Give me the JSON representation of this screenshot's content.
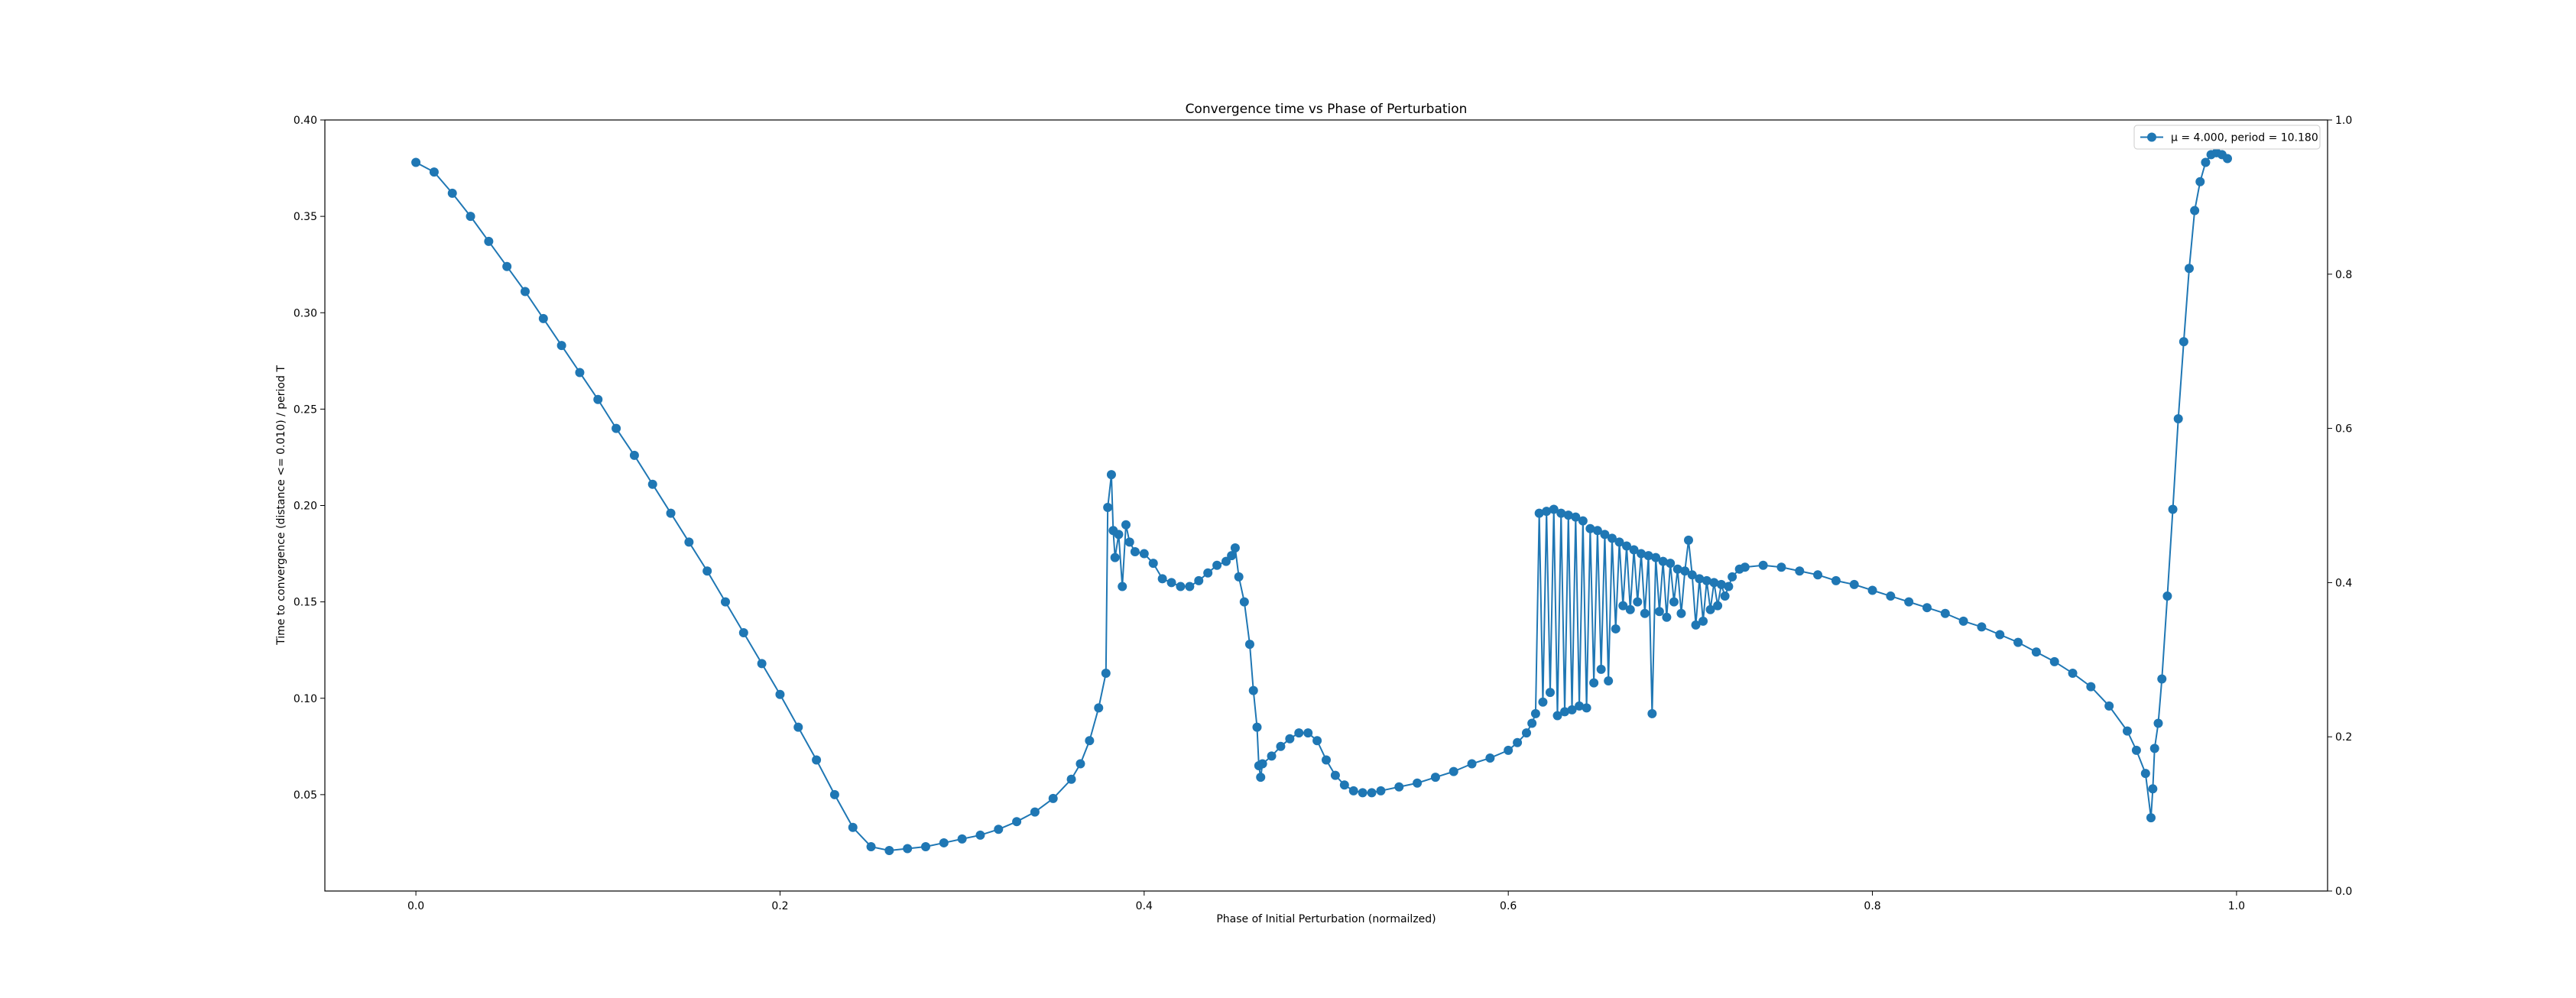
{
  "chart_data": {
    "type": "line",
    "title": "Convergence time vs Phase of Perturbation",
    "xlabel": "Phase of Initial Perturbation (normailzed)",
    "ylabel": "Time to convergence (distance <= 0.010) / period T",
    "xlim": [
      -0.05,
      1.05
    ],
    "ylim": [
      0.0,
      0.4
    ],
    "xticks": [
      "0.0",
      "0.2",
      "0.4",
      "0.6",
      "0.8",
      "1.0"
    ],
    "yticks": [
      "0.05",
      "0.10",
      "0.15",
      "0.20",
      "0.25",
      "0.30",
      "0.35",
      "0.40"
    ],
    "secondary_y": {
      "ylim": [
        0.0,
        1.0
      ],
      "ticks": [
        "0.0",
        "0.2",
        "0.4",
        "0.6",
        "0.8",
        "1.0"
      ]
    },
    "grid": false,
    "legend_position": "top-right",
    "colors": {
      "series": "#1f77b4",
      "axes": "#000000"
    },
    "series": [
      {
        "name": "μ = 4.000, period = 10.180",
        "legend_label": "μ = 4.000, period = 10.180",
        "marker": "circle",
        "color": "#1f77b4",
        "points": [
          [
            0.0,
            0.378
          ],
          [
            0.01,
            0.373
          ],
          [
            0.02,
            0.362
          ],
          [
            0.03,
            0.35
          ],
          [
            0.04,
            0.337
          ],
          [
            0.05,
            0.324
          ],
          [
            0.06,
            0.311
          ],
          [
            0.07,
            0.297
          ],
          [
            0.08,
            0.283
          ],
          [
            0.09,
            0.269
          ],
          [
            0.1,
            0.255
          ],
          [
            0.11,
            0.24
          ],
          [
            0.12,
            0.226
          ],
          [
            0.13,
            0.211
          ],
          [
            0.14,
            0.196
          ],
          [
            0.15,
            0.181
          ],
          [
            0.16,
            0.166
          ],
          [
            0.17,
            0.15
          ],
          [
            0.18,
            0.134
          ],
          [
            0.19,
            0.118
          ],
          [
            0.2,
            0.102
          ],
          [
            0.21,
            0.085
          ],
          [
            0.22,
            0.068
          ],
          [
            0.23,
            0.05
          ],
          [
            0.24,
            0.033
          ],
          [
            0.25,
            0.023
          ],
          [
            0.26,
            0.021
          ],
          [
            0.27,
            0.022
          ],
          [
            0.28,
            0.023
          ],
          [
            0.29,
            0.025
          ],
          [
            0.3,
            0.027
          ],
          [
            0.31,
            0.029
          ],
          [
            0.32,
            0.032
          ],
          [
            0.33,
            0.036
          ],
          [
            0.34,
            0.041
          ],
          [
            0.35,
            0.048
          ],
          [
            0.36,
            0.058
          ],
          [
            0.365,
            0.066
          ],
          [
            0.37,
            0.078
          ],
          [
            0.375,
            0.095
          ],
          [
            0.379,
            0.113
          ],
          [
            0.38,
            0.199
          ],
          [
            0.382,
            0.216
          ],
          [
            0.383,
            0.187
          ],
          [
            0.384,
            0.173
          ],
          [
            0.386,
            0.185
          ],
          [
            0.388,
            0.158
          ],
          [
            0.39,
            0.19
          ],
          [
            0.392,
            0.181
          ],
          [
            0.395,
            0.176
          ],
          [
            0.4,
            0.175
          ],
          [
            0.405,
            0.17
          ],
          [
            0.41,
            0.162
          ],
          [
            0.415,
            0.16
          ],
          [
            0.42,
            0.158
          ],
          [
            0.425,
            0.158
          ],
          [
            0.43,
            0.161
          ],
          [
            0.435,
            0.165
          ],
          [
            0.44,
            0.169
          ],
          [
            0.445,
            0.171
          ],
          [
            0.448,
            0.174
          ],
          [
            0.45,
            0.178
          ],
          [
            0.452,
            0.163
          ],
          [
            0.455,
            0.15
          ],
          [
            0.458,
            0.128
          ],
          [
            0.46,
            0.104
          ],
          [
            0.462,
            0.085
          ],
          [
            0.463,
            0.065
          ],
          [
            0.464,
            0.059
          ],
          [
            0.465,
            0.066
          ],
          [
            0.47,
            0.07
          ],
          [
            0.475,
            0.075
          ],
          [
            0.48,
            0.079
          ],
          [
            0.485,
            0.082
          ],
          [
            0.49,
            0.082
          ],
          [
            0.495,
            0.078
          ],
          [
            0.5,
            0.068
          ],
          [
            0.505,
            0.06
          ],
          [
            0.51,
            0.055
          ],
          [
            0.515,
            0.052
          ],
          [
            0.52,
            0.051
          ],
          [
            0.525,
            0.051
          ],
          [
            0.53,
            0.052
          ],
          [
            0.54,
            0.054
          ],
          [
            0.55,
            0.056
          ],
          [
            0.56,
            0.059
          ],
          [
            0.57,
            0.062
          ],
          [
            0.58,
            0.066
          ],
          [
            0.59,
            0.069
          ],
          [
            0.6,
            0.073
          ],
          [
            0.605,
            0.077
          ],
          [
            0.61,
            0.082
          ],
          [
            0.613,
            0.087
          ],
          [
            0.615,
            0.092
          ],
          [
            0.617,
            0.196
          ],
          [
            0.619,
            0.098
          ],
          [
            0.621,
            0.197
          ],
          [
            0.623,
            0.103
          ],
          [
            0.625,
            0.198
          ],
          [
            0.627,
            0.091
          ],
          [
            0.629,
            0.196
          ],
          [
            0.631,
            0.093
          ],
          [
            0.633,
            0.195
          ],
          [
            0.635,
            0.094
          ],
          [
            0.637,
            0.194
          ],
          [
            0.639,
            0.096
          ],
          [
            0.641,
            0.192
          ],
          [
            0.643,
            0.095
          ],
          [
            0.645,
            0.188
          ],
          [
            0.647,
            0.108
          ],
          [
            0.649,
            0.187
          ],
          [
            0.651,
            0.115
          ],
          [
            0.653,
            0.185
          ],
          [
            0.655,
            0.109
          ],
          [
            0.657,
            0.183
          ],
          [
            0.659,
            0.136
          ],
          [
            0.661,
            0.181
          ],
          [
            0.663,
            0.148
          ],
          [
            0.665,
            0.179
          ],
          [
            0.667,
            0.146
          ],
          [
            0.669,
            0.177
          ],
          [
            0.671,
            0.15
          ],
          [
            0.673,
            0.175
          ],
          [
            0.675,
            0.144
          ],
          [
            0.677,
            0.174
          ],
          [
            0.679,
            0.092
          ],
          [
            0.681,
            0.173
          ],
          [
            0.683,
            0.145
          ],
          [
            0.685,
            0.171
          ],
          [
            0.687,
            0.142
          ],
          [
            0.689,
            0.17
          ],
          [
            0.691,
            0.15
          ],
          [
            0.693,
            0.167
          ],
          [
            0.695,
            0.144
          ],
          [
            0.697,
            0.166
          ],
          [
            0.699,
            0.182
          ],
          [
            0.701,
            0.164
          ],
          [
            0.703,
            0.138
          ],
          [
            0.705,
            0.162
          ],
          [
            0.707,
            0.14
          ],
          [
            0.709,
            0.161
          ],
          [
            0.711,
            0.146
          ],
          [
            0.713,
            0.16
          ],
          [
            0.715,
            0.148
          ],
          [
            0.717,
            0.159
          ],
          [
            0.719,
            0.153
          ],
          [
            0.721,
            0.158
          ],
          [
            0.723,
            0.163
          ],
          [
            0.727,
            0.167
          ],
          [
            0.73,
            0.168
          ],
          [
            0.74,
            0.169
          ],
          [
            0.75,
            0.168
          ],
          [
            0.76,
            0.166
          ],
          [
            0.77,
            0.164
          ],
          [
            0.78,
            0.161
          ],
          [
            0.79,
            0.159
          ],
          [
            0.8,
            0.156
          ],
          [
            0.81,
            0.153
          ],
          [
            0.82,
            0.15
          ],
          [
            0.83,
            0.147
          ],
          [
            0.84,
            0.144
          ],
          [
            0.85,
            0.14
          ],
          [
            0.86,
            0.137
          ],
          [
            0.87,
            0.133
          ],
          [
            0.88,
            0.129
          ],
          [
            0.89,
            0.124
          ],
          [
            0.9,
            0.119
          ],
          [
            0.91,
            0.113
          ],
          [
            0.92,
            0.106
          ],
          [
            0.93,
            0.096
          ],
          [
            0.94,
            0.083
          ],
          [
            0.945,
            0.073
          ],
          [
            0.95,
            0.061
          ],
          [
            0.953,
            0.038
          ],
          [
            0.954,
            0.053
          ],
          [
            0.955,
            0.074
          ],
          [
            0.957,
            0.087
          ],
          [
            0.959,
            0.11
          ],
          [
            0.962,
            0.153
          ],
          [
            0.965,
            0.198
          ],
          [
            0.968,
            0.245
          ],
          [
            0.971,
            0.285
          ],
          [
            0.974,
            0.323
          ],
          [
            0.977,
            0.353
          ],
          [
            0.98,
            0.368
          ],
          [
            0.983,
            0.378
          ],
          [
            0.986,
            0.382
          ],
          [
            0.989,
            0.383
          ],
          [
            0.992,
            0.382
          ],
          [
            0.995,
            0.38
          ]
        ]
      }
    ]
  }
}
